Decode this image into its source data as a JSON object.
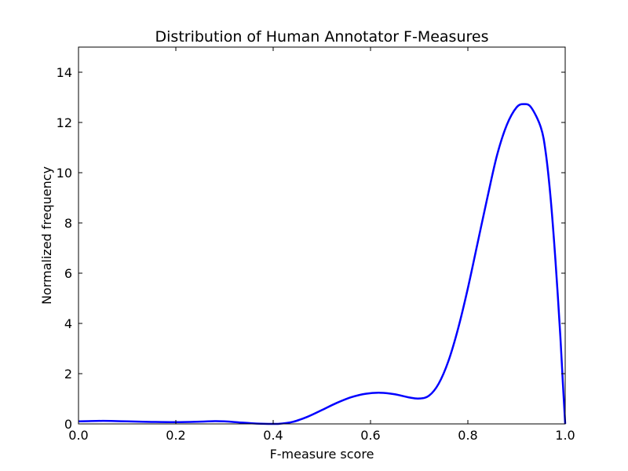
{
  "chart_data": {
    "type": "line",
    "title": "Distribution of Human Annotator F-Measures",
    "xlabel": "F-measure score",
    "ylabel": "Normalized frequency",
    "xlim": [
      0.0,
      1.0
    ],
    "ylim": [
      0,
      15
    ],
    "grid": false,
    "x_ticks": [
      "0.0",
      "0.2",
      "0.4",
      "0.6",
      "0.8",
      "1.0"
    ],
    "y_ticks": [
      "0",
      "2",
      "4",
      "6",
      "8",
      "10",
      "12",
      "14"
    ],
    "series": [
      {
        "color": "#0000ff",
        "points": [
          [
            0.0,
            0.1
          ],
          [
            0.02,
            0.11
          ],
          [
            0.05,
            0.12
          ],
          [
            0.08,
            0.11
          ],
          [
            0.1,
            0.1
          ],
          [
            0.15,
            0.08
          ],
          [
            0.2,
            0.07
          ],
          [
            0.25,
            0.09
          ],
          [
            0.28,
            0.11
          ],
          [
            0.3,
            0.1
          ],
          [
            0.33,
            0.06
          ],
          [
            0.36,
            0.02
          ],
          [
            0.39,
            0.0
          ],
          [
            0.41,
            0.0
          ],
          [
            0.44,
            0.08
          ],
          [
            0.47,
            0.28
          ],
          [
            0.5,
            0.55
          ],
          [
            0.53,
            0.83
          ],
          [
            0.56,
            1.06
          ],
          [
            0.59,
            1.2
          ],
          [
            0.62,
            1.24
          ],
          [
            0.65,
            1.18
          ],
          [
            0.68,
            1.05
          ],
          [
            0.7,
            1.01
          ],
          [
            0.72,
            1.12
          ],
          [
            0.74,
            1.6
          ],
          [
            0.76,
            2.5
          ],
          [
            0.78,
            3.8
          ],
          [
            0.8,
            5.4
          ],
          [
            0.82,
            7.2
          ],
          [
            0.84,
            9.0
          ],
          [
            0.86,
            10.7
          ],
          [
            0.88,
            11.9
          ],
          [
            0.9,
            12.6
          ],
          [
            0.915,
            12.73
          ],
          [
            0.93,
            12.6
          ],
          [
            0.95,
            11.8
          ],
          [
            0.96,
            10.8
          ],
          [
            0.97,
            9.0
          ],
          [
            0.98,
            6.5
          ],
          [
            0.99,
            3.5
          ],
          [
            0.995,
            1.7
          ],
          [
            1.0,
            0.0
          ]
        ]
      }
    ]
  }
}
